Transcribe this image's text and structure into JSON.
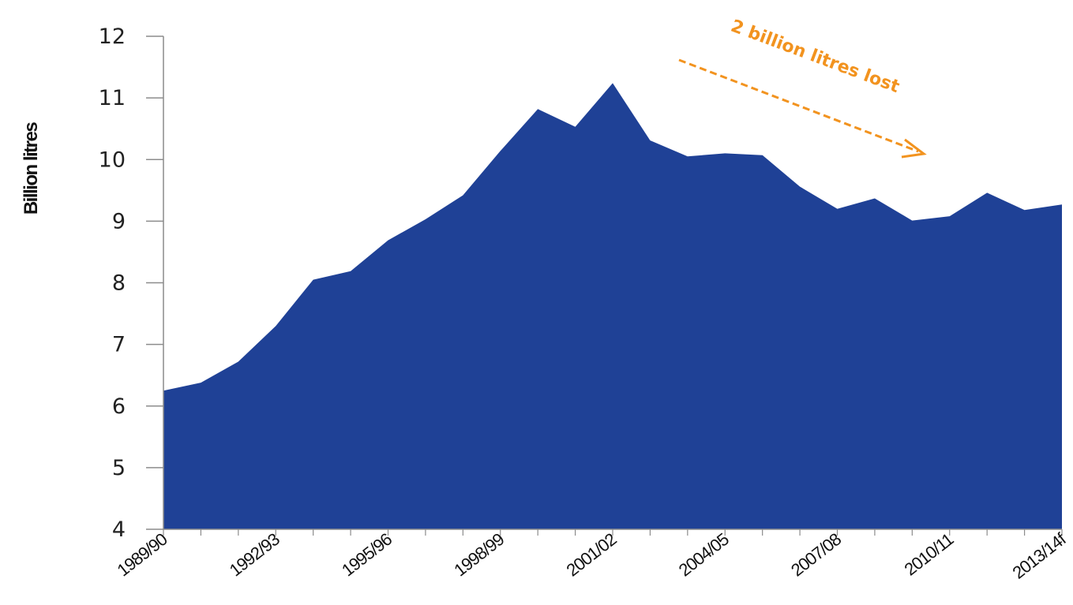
{
  "chart_data": {
    "type": "area",
    "ylabel": "Billion litres",
    "xlabel": "",
    "title": "",
    "ylim": [
      4,
      12
    ],
    "yticks": [
      4,
      5,
      6,
      7,
      8,
      9,
      10,
      11,
      12
    ],
    "x_tick_labels": [
      "1989/90",
      "1992/93",
      "1995/96",
      "1998/99",
      "2001/02",
      "2004/05",
      "2007/08",
      "2010/11",
      "2013/14f"
    ],
    "x": [
      "1989/90",
      "1990/91",
      "1991/92",
      "1992/93",
      "1993/94",
      "1994/95",
      "1995/96",
      "1996/97",
      "1997/98",
      "1998/99",
      "1999/00",
      "2000/01",
      "2001/02",
      "2002/03",
      "2003/04",
      "2004/05",
      "2005/06",
      "2006/07",
      "2007/08",
      "2008/09",
      "2009/10",
      "2010/11",
      "2011/12",
      "2012/13",
      "2013/14f"
    ],
    "values": [
      6.25,
      6.38,
      6.72,
      7.3,
      8.05,
      8.19,
      8.69,
      9.03,
      9.42,
      10.14,
      10.82,
      10.53,
      11.24,
      10.31,
      10.05,
      10.1,
      10.07,
      9.56,
      9.2,
      9.37,
      9.01,
      9.08,
      9.46,
      9.18,
      9.27
    ],
    "grid": false,
    "fill_color": "#1f4196",
    "annotation": {
      "text": "2 billion litres lost",
      "color": "#f2931f"
    }
  }
}
